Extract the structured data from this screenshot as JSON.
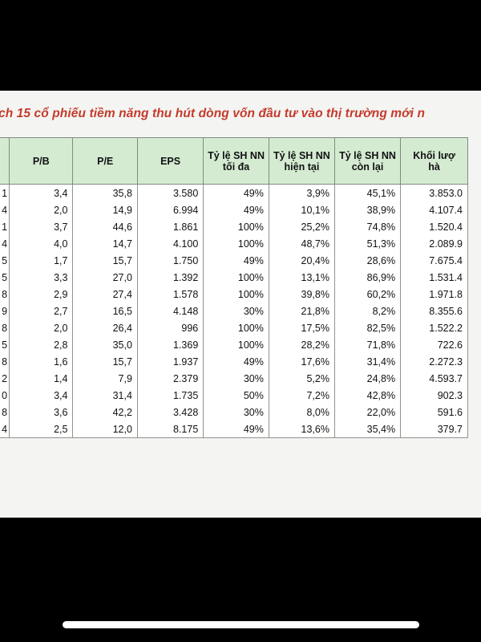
{
  "title": "ch 15 cổ phiếu tiềm năng thu hút dòng vốn đầu tư vào thị trường mới n",
  "columns": [
    {
      "lines": [
        ""
      ]
    },
    {
      "lines": [
        "P/B"
      ]
    },
    {
      "lines": [
        "P/E"
      ]
    },
    {
      "lines": [
        "EPS"
      ]
    },
    {
      "lines": [
        "Tỷ lệ SH NN",
        "tối đa"
      ]
    },
    {
      "lines": [
        "Tỷ lệ SH NN",
        "hiện tại"
      ]
    },
    {
      "lines": [
        "Tỷ lệ SH NN",
        "còn lại"
      ]
    },
    {
      "lines": [
        "Khối lượ",
        "hà"
      ]
    }
  ],
  "rows": [
    [
      "1",
      "3,4",
      "35,8",
      "3.580",
      "49%",
      "3,9%",
      "45,1%",
      "3.853.0"
    ],
    [
      "4",
      "2,0",
      "14,9",
      "6.994",
      "49%",
      "10,1%",
      "38,9%",
      "4.107.4"
    ],
    [
      "1",
      "3,7",
      "44,6",
      "1.861",
      "100%",
      "25,2%",
      "74,8%",
      "1.520.4"
    ],
    [
      "4",
      "4,0",
      "14,7",
      "4.100",
      "100%",
      "48,7%",
      "51,3%",
      "2.089.9"
    ],
    [
      "5",
      "1,7",
      "15,7",
      "1.750",
      "49%",
      "20,4%",
      "28,6%",
      "7.675.4"
    ],
    [
      "5",
      "3,3",
      "27,0",
      "1.392",
      "100%",
      "13,1%",
      "86,9%",
      "1.531.4"
    ],
    [
      "8",
      "2,9",
      "27,4",
      "1.578",
      "100%",
      "39,8%",
      "60,2%",
      "1.971.8"
    ],
    [
      "9",
      "2,7",
      "16,5",
      "4.148",
      "30%",
      "21,8%",
      "8,2%",
      "8.355.6"
    ],
    [
      "8",
      "2,0",
      "26,4",
      "996",
      "100%",
      "17,5%",
      "82,5%",
      "1.522.2"
    ],
    [
      "5",
      "2,8",
      "35,0",
      "1.369",
      "100%",
      "28,2%",
      "71,8%",
      "722.6"
    ],
    [
      "8",
      "1,6",
      "15,7",
      "1.937",
      "49%",
      "17,6%",
      "31,4%",
      "2.272.3"
    ],
    [
      "2",
      "1,4",
      "7,9",
      "2.379",
      "30%",
      "5,2%",
      "24,8%",
      "4.593.7"
    ],
    [
      "0",
      "3,4",
      "31,4",
      "1.735",
      "50%",
      "7,2%",
      "42,8%",
      "902.3"
    ],
    [
      "8",
      "3,6",
      "42,2",
      "3.428",
      "30%",
      "8,0%",
      "22,0%",
      "591.6"
    ],
    [
      "4",
      "2,5",
      "12,0",
      "8.175",
      "49%",
      "13,6%",
      "35,4%",
      "379.7"
    ]
  ]
}
